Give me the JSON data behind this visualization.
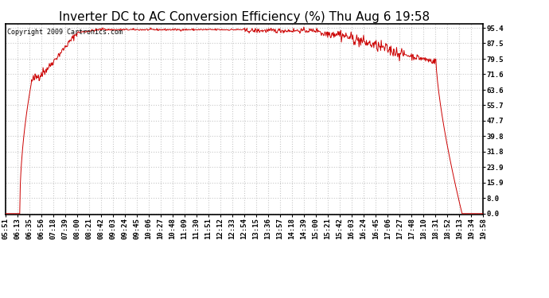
{
  "title": "Inverter DC to AC Conversion Efficiency (%) Thu Aug 6 19:58",
  "copyright": "Copyright 2009 Cartronics.com",
  "line_color": "#cc0000",
  "background_color": "#ffffff",
  "plot_bg_color": "#ffffff",
  "grid_color": "#c8c8c8",
  "yticks": [
    0.0,
    8.0,
    15.9,
    23.9,
    31.8,
    39.8,
    47.7,
    55.7,
    63.6,
    71.6,
    79.5,
    87.5,
    95.4
  ],
  "ymin": -0.5,
  "ymax": 97.5,
  "xtick_labels": [
    "05:51",
    "06:13",
    "06:35",
    "06:56",
    "07:18",
    "07:39",
    "08:00",
    "08:21",
    "08:42",
    "09:03",
    "09:24",
    "09:45",
    "10:06",
    "10:27",
    "10:48",
    "11:09",
    "11:30",
    "11:51",
    "12:12",
    "12:33",
    "12:54",
    "13:15",
    "13:36",
    "13:57",
    "14:18",
    "14:39",
    "15:00",
    "15:21",
    "15:42",
    "16:03",
    "16:24",
    "16:45",
    "17:06",
    "17:27",
    "17:48",
    "18:10",
    "18:31",
    "18:52",
    "19:13",
    "19:34",
    "19:58"
  ],
  "title_fontsize": 11,
  "tick_fontsize": 6.5,
  "copyright_fontsize": 6
}
